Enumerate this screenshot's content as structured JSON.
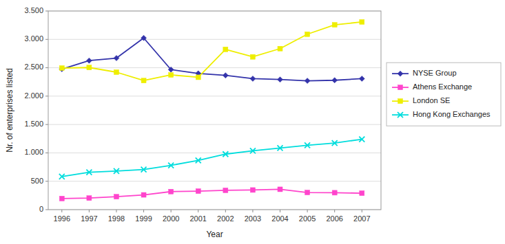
{
  "chart_data": {
    "type": "line",
    "xlabel": "Year",
    "ylabel": "Nr. of enterprises listed",
    "x": [
      1996,
      1997,
      1998,
      1999,
      2000,
      2001,
      2002,
      2003,
      2004,
      2005,
      2006,
      2007
    ],
    "series": [
      {
        "name": "NYSE Group",
        "color": "#3333aa",
        "marker": "diamond",
        "values": [
          2476,
          2626,
          2670,
          3025,
          2468,
          2400,
          2366,
          2308,
          2293,
          2270,
          2280,
          2308
        ]
      },
      {
        "name": "Athens Exchange",
        "color": "#ff44cc",
        "marker": "square",
        "values": [
          196,
          204,
          228,
          260,
          318,
          326,
          340,
          346,
          358,
          302,
          298,
          290
        ]
      },
      {
        "name": "London SE",
        "color": "#eeee00",
        "marker": "square",
        "values": [
          2495,
          2504,
          2422,
          2274,
          2374,
          2332,
          2824,
          2692,
          2837,
          3091,
          3256,
          3307
        ]
      },
      {
        "name": "Hong Kong Exchanges",
        "color": "#00dddd",
        "marker": "x",
        "values": [
          583,
          658,
          680,
          708,
          780,
          867,
          978,
          1037,
          1086,
          1135,
          1173,
          1241
        ]
      }
    ],
    "xlim": [
      1995.5,
      2007.7
    ],
    "xticks": [
      1996,
      1997,
      1998,
      1999,
      2000,
      2001,
      2002,
      2003,
      2004,
      2005,
      2006,
      2007
    ],
    "ylim": [
      0,
      3500
    ],
    "yticks": [
      0,
      500,
      {
        "value": 1000,
        "label": "1.000"
      },
      {
        "value": 1500,
        "label": "1.500"
      },
      {
        "value": 2000,
        "label": "2.000"
      },
      {
        "value": 2500,
        "label": "2.500"
      },
      {
        "value": 3000,
        "label": "3.000"
      },
      {
        "value": 3500,
        "label": "3.500"
      }
    ],
    "grid": true,
    "legend": "right"
  }
}
